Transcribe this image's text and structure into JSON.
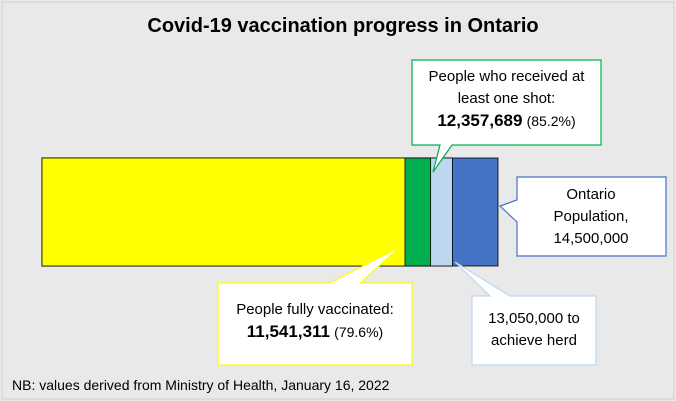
{
  "chart_data": {
    "type": "bar",
    "title": "Covid-19 vaccination progress in Ontario",
    "xlim": [
      0,
      14500000
    ],
    "series": [
      {
        "name": "Ontario Population,",
        "color": "#4472c4",
        "values": [
          14500000
        ],
        "value_labels": [
          "14,500,000"
        ]
      },
      {
        "name": "to achieve herd",
        "color": "#bdd7ee",
        "values": [
          13050000
        ],
        "value_labels": [
          "13,050,000"
        ]
      },
      {
        "name": "People who received at least one shot:",
        "color": "#00b050",
        "values": [
          12357689
        ],
        "value_labels": [
          "12,357,689"
        ],
        "share_labels": [
          "(85.2%)"
        ]
      },
      {
        "name": "People fully vaccinated:",
        "color": "#ffff00",
        "values": [
          11541311
        ],
        "value_labels": [
          "11,541,311"
        ],
        "share_labels": [
          "(79.6%)"
        ]
      }
    ],
    "footnote": "NB: values derived from Ministry of Health, January 16, 2022"
  }
}
